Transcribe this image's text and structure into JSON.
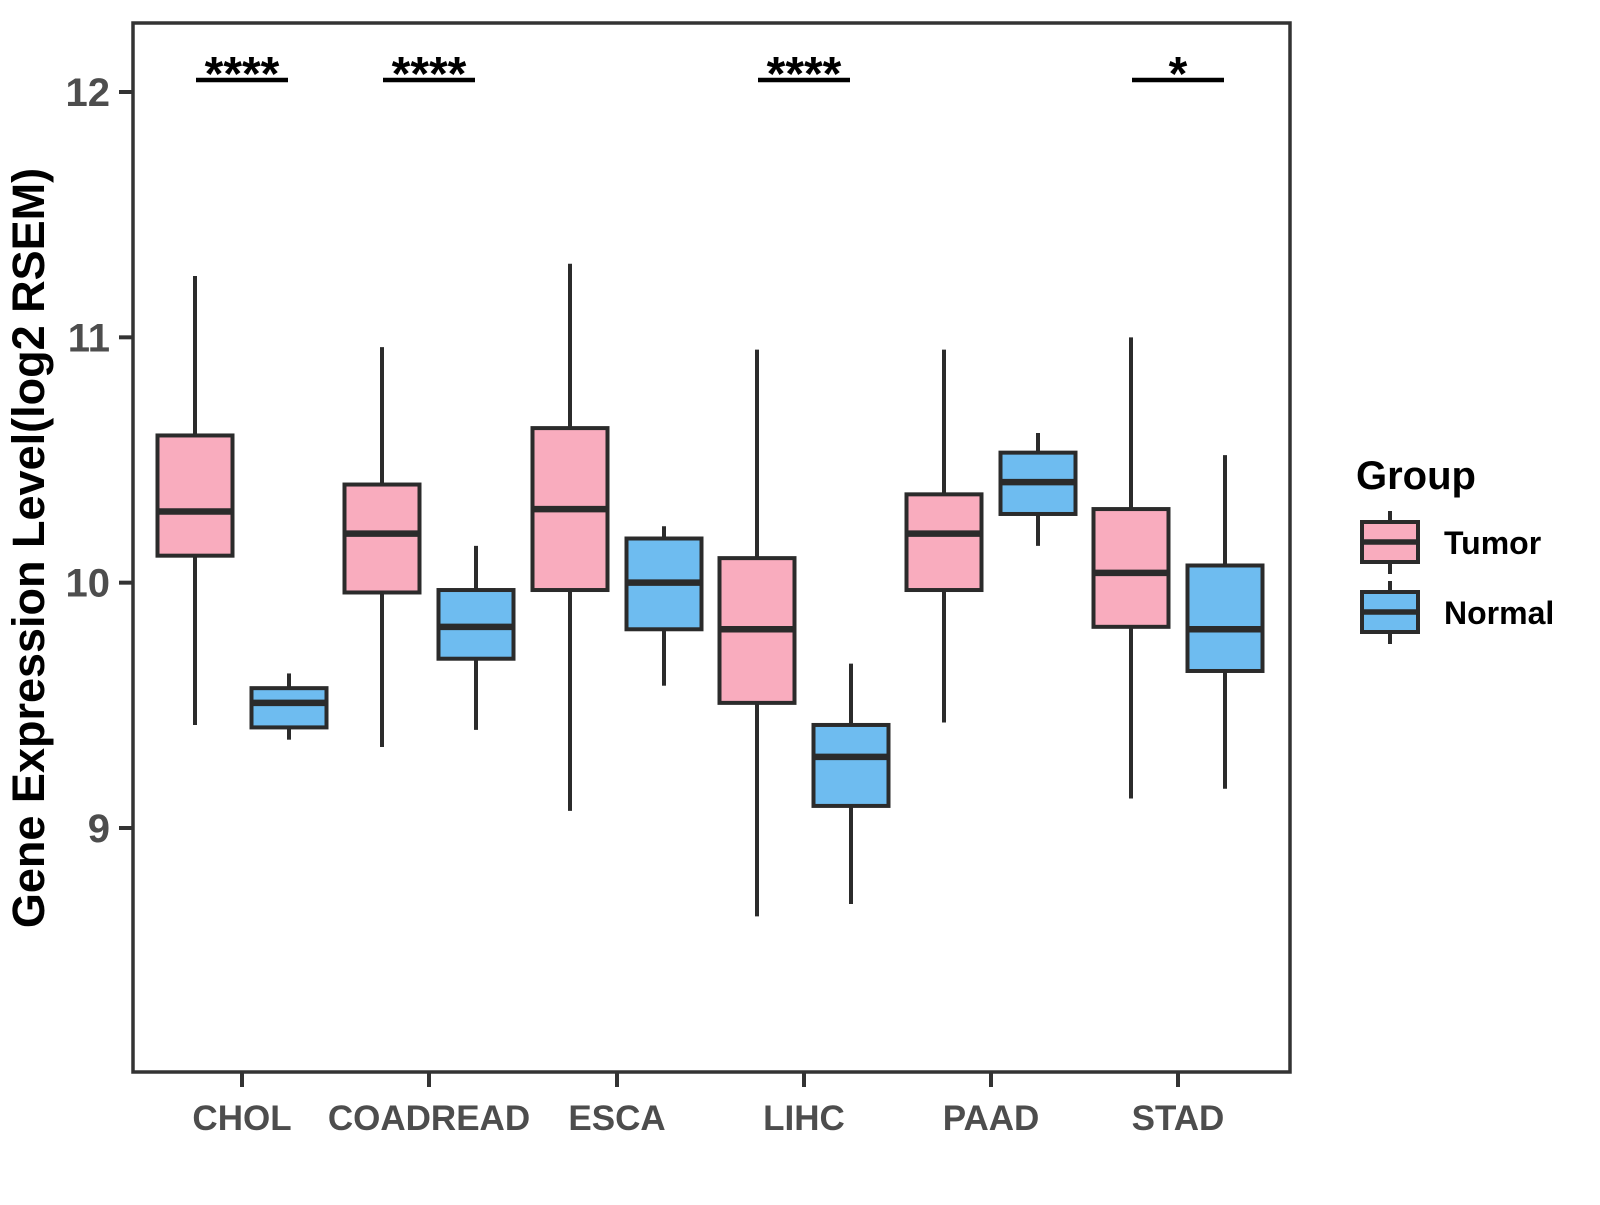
{
  "figure": {
    "background": "#ffffff",
    "panel_border_color": "#333333",
    "box_stroke_color": "#2b2b2b",
    "tick_text_color": "#4d4d4d",
    "legend": {
      "title": "Group",
      "items": [
        {
          "label": "Tumor",
          "color": "#F9ACBE"
        },
        {
          "label": "Normal",
          "color": "#6EBCF0"
        }
      ]
    }
  },
  "chart_data": {
    "type": "grouped_boxplot",
    "title": "",
    "xlabel": "",
    "ylabel": "Gene Expression Level(log2 RSEM)",
    "categories": [
      "CHOL",
      "COADREAD",
      "ESCA",
      "LIHC",
      "PAAD",
      "STAD"
    ],
    "groups": [
      "Tumor",
      "Normal"
    ],
    "y_ticks": [
      9,
      10,
      11,
      12
    ],
    "ylim": [
      8.0,
      12.29
    ],
    "grid": false,
    "legend_position": "right",
    "series": [
      {
        "name": "Tumor",
        "color": "#F9ACBE",
        "boxes": [
          {
            "category": "CHOL",
            "min": 9.42,
            "q1": 10.11,
            "median": 10.29,
            "q3": 10.6,
            "max": 11.25
          },
          {
            "category": "COADREAD",
            "min": 9.33,
            "q1": 9.96,
            "median": 10.2,
            "q3": 10.4,
            "max": 10.96
          },
          {
            "category": "ESCA",
            "min": 9.07,
            "q1": 9.97,
            "median": 10.3,
            "q3": 10.63,
            "max": 11.3
          },
          {
            "category": "LIHC",
            "min": 8.64,
            "q1": 9.51,
            "median": 9.81,
            "q3": 10.1,
            "max": 10.95
          },
          {
            "category": "PAAD",
            "min": 9.43,
            "q1": 9.97,
            "median": 10.2,
            "q3": 10.36,
            "max": 10.95
          },
          {
            "category": "STAD",
            "min": 9.12,
            "q1": 9.82,
            "median": 10.04,
            "q3": 10.3,
            "max": 11.0
          }
        ]
      },
      {
        "name": "Normal",
        "color": "#6EBCF0",
        "boxes": [
          {
            "category": "CHOL",
            "min": 9.36,
            "q1": 9.41,
            "median": 9.51,
            "q3": 9.57,
            "max": 9.63
          },
          {
            "category": "COADREAD",
            "min": 9.4,
            "q1": 9.69,
            "median": 9.82,
            "q3": 9.97,
            "max": 10.15
          },
          {
            "category": "ESCA",
            "min": 9.58,
            "q1": 9.81,
            "median": 10.0,
            "q3": 10.18,
            "max": 10.23
          },
          {
            "category": "LIHC",
            "min": 8.69,
            "q1": 9.09,
            "median": 9.29,
            "q3": 9.42,
            "max": 9.67
          },
          {
            "category": "PAAD",
            "min": 10.15,
            "q1": 10.28,
            "median": 10.41,
            "q3": 10.53,
            "max": 10.61
          },
          {
            "category": "STAD",
            "min": 9.16,
            "q1": 9.64,
            "median": 9.81,
            "q3": 10.07,
            "max": 10.52
          }
        ]
      }
    ],
    "significance": [
      {
        "category": "CHOL",
        "label": "****"
      },
      {
        "category": "COADREAD",
        "label": "****"
      },
      {
        "category": "LIHC",
        "label": "****"
      },
      {
        "category": "STAD",
        "label": "*"
      }
    ]
  }
}
